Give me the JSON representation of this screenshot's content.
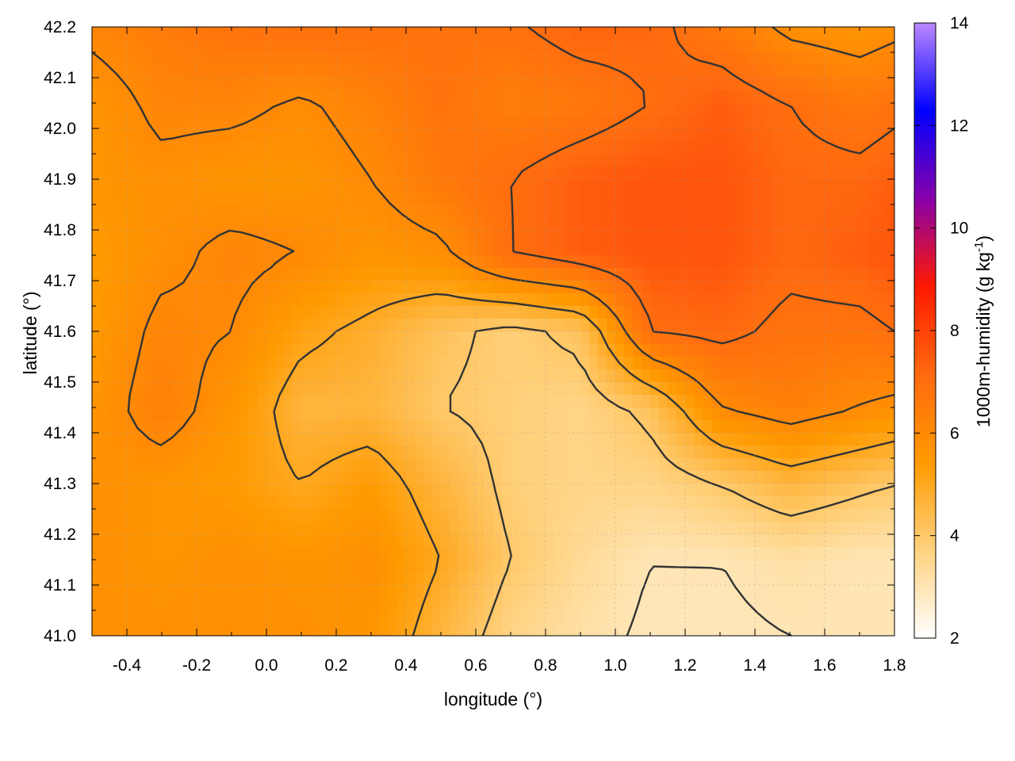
{
  "chart_data": {
    "type": "heatmap",
    "xlabel": "longitude (°)",
    "ylabel": "latitude (°)",
    "colorbar_label": "1000m-humidity (g kg",
    "colorbar_label_sup": "-1",
    "colorbar_label_end": ")",
    "xlim": [
      -0.5,
      1.8
    ],
    "ylim": [
      41.0,
      42.2
    ],
    "x_ticks": [
      "-0.4",
      "-0.2",
      "0.0",
      "0.2",
      "0.4",
      "0.6",
      "0.8",
      "1.0",
      "1.2",
      "1.4",
      "1.6",
      "1.8"
    ],
    "y_ticks": [
      "41.0",
      "41.1",
      "41.2",
      "41.3",
      "41.4",
      "41.5",
      "41.6",
      "41.7",
      "41.8",
      "41.9",
      "42.0",
      "42.1",
      "42.2"
    ],
    "colorbar_range": [
      2,
      14
    ],
    "colorbar_ticks": [
      "2",
      "4",
      "6",
      "8",
      "10",
      "12",
      "14"
    ],
    "colormap": [
      "#ffffff",
      "#ffd27f",
      "#ff9a00",
      "#ff6a10",
      "#ff1a00",
      "#8800aa",
      "#0000ff",
      "#bb88ff"
    ],
    "grid": true,
    "field": {
      "x": [
        -0.5,
        -0.3,
        -0.1,
        0.1,
        0.3,
        0.5,
        0.7,
        0.9,
        1.1,
        1.3,
        1.5,
        1.7,
        1.8
      ],
      "y": [
        42.2,
        42.05,
        41.9,
        41.75,
        41.6,
        41.45,
        41.3,
        41.15,
        41.0
      ],
      "values": [
        [
          6.2,
          6.5,
          6.8,
          6.9,
          6.9,
          6.8,
          6.9,
          7.3,
          7.2,
          6.6,
          5.8,
          5.6,
          5.8
        ],
        [
          5.6,
          6.2,
          6.2,
          5.9,
          6.3,
          6.8,
          6.4,
          6.6,
          7.0,
          7.4,
          7.0,
          6.6,
          6.8
        ],
        [
          5.6,
          5.8,
          5.6,
          5.6,
          6.0,
          6.6,
          7.0,
          7.4,
          7.6,
          7.6,
          7.2,
          7.2,
          7.4
        ],
        [
          5.4,
          5.8,
          6.2,
          6.0,
          5.6,
          5.8,
          7.0,
          7.4,
          7.6,
          7.6,
          7.2,
          7.4,
          7.6
        ],
        [
          5.4,
          6.2,
          6.0,
          5.2,
          4.8,
          4.2,
          3.8,
          4.2,
          7.0,
          7.2,
          6.8,
          6.8,
          7.0
        ],
        [
          5.6,
          6.4,
          5.6,
          4.6,
          4.6,
          4.0,
          3.8,
          3.6,
          4.2,
          6.0,
          6.4,
          6.0,
          5.8
        ],
        [
          5.8,
          5.6,
          5.4,
          5.0,
          5.4,
          4.6,
          3.8,
          3.6,
          3.6,
          4.0,
          4.6,
          4.2,
          4.0
        ],
        [
          5.8,
          5.6,
          5.8,
          5.6,
          5.8,
          5.0,
          4.0,
          3.4,
          3.0,
          3.0,
          3.2,
          3.0,
          3.0
        ],
        [
          5.8,
          5.8,
          5.8,
          5.8,
          5.6,
          4.6,
          3.6,
          3.2,
          2.9,
          2.9,
          3.0,
          3.0,
          3.0
        ]
      ]
    },
    "contour_levels": [
      3,
      4,
      5,
      6,
      7
    ]
  }
}
